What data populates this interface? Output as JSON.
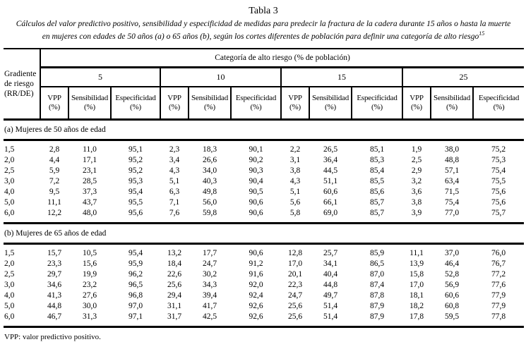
{
  "title": "Tabla 3",
  "subtitle": {
    "line1": "Cálculos del valor predictivo positivo, sensibilidad y especificidad de medidas para predecir la fractura de la cadera durante 15 años o hasta la muerte",
    "line2": "en mujeres con edades de 50 años (a) o 65 años (b), según los cortes diferentes de población para definir una categoría de alto riesgo",
    "reference": "15"
  },
  "table": {
    "row_header": "Gradiente\nde riesgo\n(RR/DE)",
    "column_group_header": "Categoría de alto riesgo (% de población)",
    "groups": [
      "5",
      "10",
      "15",
      "25"
    ],
    "metrics": [
      "VPP\n(%)",
      "Sensibilidad\n(%)",
      "Especificidad\n(%)"
    ],
    "sections": [
      {
        "label": "(a) Mujeres de 50 años de edad",
        "rows": [
          [
            "1,5",
            "2,8",
            "11,0",
            "95,1",
            "2,3",
            "18,3",
            "90,1",
            "2,2",
            "26,5",
            "85,1",
            "1,9",
            "38,0",
            "75,2"
          ],
          [
            "2,0",
            "4,4",
            "17,1",
            "95,2",
            "3,4",
            "26,6",
            "90,2",
            "3,1",
            "36,4",
            "85,3",
            "2,5",
            "48,8",
            "75,3"
          ],
          [
            "2,5",
            "5,9",
            "23,1",
            "95,2",
            "4,3",
            "34,0",
            "90,3",
            "3,8",
            "44,5",
            "85,4",
            "2,9",
            "57,1",
            "75,4"
          ],
          [
            "3,0",
            "7,2",
            "28,5",
            "95,3",
            "5,1",
            "40,3",
            "90,4",
            "4,3",
            "51,1",
            "85,5",
            "3,2",
            "63,4",
            "75,5"
          ],
          [
            "4,0",
            "9,5",
            "37,3",
            "95,4",
            "6,3",
            "49,8",
            "90,5",
            "5,1",
            "60,6",
            "85,6",
            "3,6",
            "71,5",
            "75,6"
          ],
          [
            "5,0",
            "11,1",
            "43,7",
            "95,5",
            "7,1",
            "56,0",
            "90,6",
            "5,6",
            "66,1",
            "85,7",
            "3,8",
            "75,4",
            "75,6"
          ],
          [
            "6,0",
            "12,2",
            "48,0",
            "95,6",
            "7,6",
            "59,8",
            "90,6",
            "5,8",
            "69,0",
            "85,7",
            "3,9",
            "77,0",
            "75,7"
          ]
        ]
      },
      {
        "label": "(b) Mujeres de 65 años de edad",
        "rows": [
          [
            "1,5",
            "15,7",
            "10,5",
            "95,4",
            "13,2",
            "17,7",
            "90,6",
            "12,8",
            "25,7",
            "85,9",
            "11,1",
            "37,0",
            "76,0"
          ],
          [
            "2,0",
            "23,3",
            "15,6",
            "95,9",
            "18,4",
            "24,7",
            "91,2",
            "17,0",
            "34,1",
            "86,5",
            "13,9",
            "46,4",
            "76,7"
          ],
          [
            "2,5",
            "29,7",
            "19,9",
            "96,2",
            "22,6",
            "30,2",
            "91,6",
            "20,1",
            "40,4",
            "87,0",
            "15,8",
            "52,8",
            "77,2"
          ],
          [
            "3,0",
            "34,6",
            "23,2",
            "96,5",
            "25,6",
            "34,3",
            "92,0",
            "22,3",
            "44,8",
            "87,4",
            "17,0",
            "56,9",
            "77,6"
          ],
          [
            "4,0",
            "41,3",
            "27,6",
            "96,8",
            "29,4",
            "39,4",
            "92,4",
            "24,7",
            "49,7",
            "87,8",
            "18,1",
            "60,6",
            "77,9"
          ],
          [
            "5,0",
            "44,8",
            "30,0",
            "97,0",
            "31,1",
            "41,7",
            "92,6",
            "25,6",
            "51,4",
            "87,9",
            "18,2",
            "60,8",
            "77,9"
          ],
          [
            "6,0",
            "46,7",
            "31,3",
            "97,1",
            "31,7",
            "42,5",
            "92,6",
            "25,6",
            "51,4",
            "87,9",
            "17,8",
            "59,5",
            "77,8"
          ]
        ]
      }
    ]
  },
  "footnote": "VPP: valor predictivo positivo."
}
